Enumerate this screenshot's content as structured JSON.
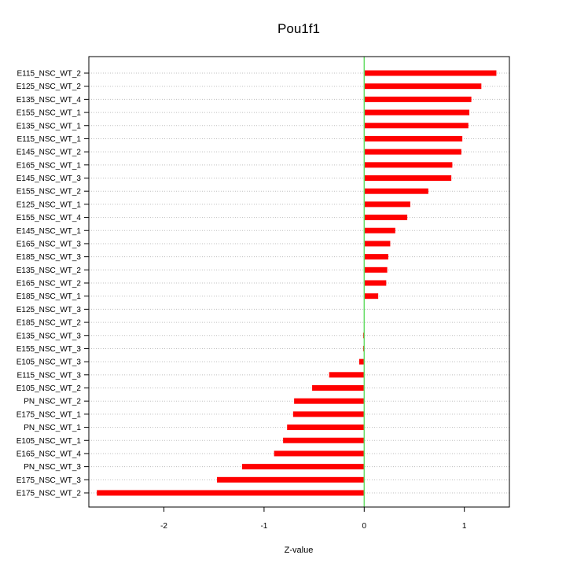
{
  "chart_data": {
    "type": "bar",
    "orientation": "horizontal",
    "title": "Pou1f1",
    "xlabel": "Z-value",
    "ylabel": "",
    "xlim": [
      -2.75,
      1.45
    ],
    "xticks": [
      -2,
      -1,
      0,
      1
    ],
    "xtick_labels": [
      "-2",
      "-1",
      "0",
      "1"
    ],
    "grid": "horizontal dotted",
    "zero_line": true,
    "colors": {
      "bar": "#ff0000",
      "zero_line": "#66dd66",
      "grid": "#bfbfbf",
      "frame": "#000000"
    },
    "categories": [
      "E115_NSC_WT_2",
      "E125_NSC_WT_2",
      "E135_NSC_WT_4",
      "E155_NSC_WT_1",
      "E135_NSC_WT_1",
      "E115_NSC_WT_1",
      "E145_NSC_WT_2",
      "E165_NSC_WT_1",
      "E145_NSC_WT_3",
      "E155_NSC_WT_2",
      "E125_NSC_WT_1",
      "E155_NSC_WT_4",
      "E145_NSC_WT_1",
      "E165_NSC_WT_3",
      "E185_NSC_WT_3",
      "E135_NSC_WT_2",
      "E165_NSC_WT_2",
      "E185_NSC_WT_1",
      "E125_NSC_WT_3",
      "E185_NSC_WT_2",
      "E135_NSC_WT_3",
      "E155_NSC_WT_3",
      "E105_NSC_WT_3",
      "E115_NSC_WT_3",
      "E105_NSC_WT_2",
      "PN_NSC_WT_2",
      "E175_NSC_WT_1",
      "PN_NSC_WT_1",
      "E105_NSC_WT_1",
      "E165_NSC_WT_4",
      "PN_NSC_WT_3",
      "E175_NSC_WT_3",
      "E175_NSC_WT_2"
    ],
    "values": [
      1.32,
      1.17,
      1.07,
      1.05,
      1.04,
      0.98,
      0.97,
      0.88,
      0.87,
      0.64,
      0.46,
      0.43,
      0.31,
      0.26,
      0.24,
      0.23,
      0.22,
      0.14,
      0.0,
      0.0,
      -0.01,
      -0.01,
      -0.05,
      -0.35,
      -0.52,
      -0.7,
      -0.71,
      -0.77,
      -0.81,
      -0.9,
      -1.22,
      -1.47,
      -2.67
    ]
  }
}
